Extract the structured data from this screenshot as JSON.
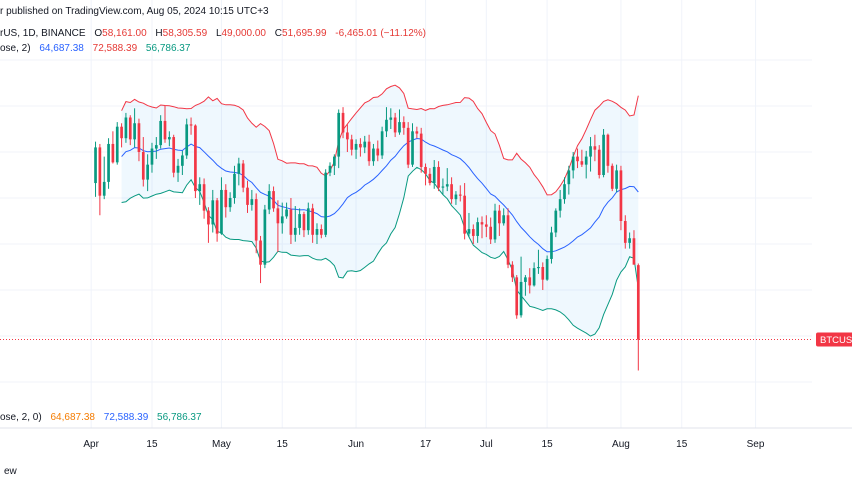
{
  "header": {
    "published": "r published on TradingView.com, Aug 05, 2024 10:15 UTC+3",
    "symbol": "rUS, 1D, BINANCE",
    "open_label": "O",
    "open": "58,161.00",
    "high_label": "H",
    "high": "58,305.59",
    "low_label": "L",
    "low": "49,000.00",
    "close_label": "C",
    "close": "51,695.99",
    "change": "-6,465.01 (−11.12%)",
    "bb_name": "ose, 2)",
    "bb_basis": "64,687.38",
    "bb_upper": "72,588.39",
    "bb_lower": "56,786.37"
  },
  "indicator_row": {
    "name": "ose, 2, 0)",
    "basis": "64,687.38",
    "upper": "72,588.39",
    "lower": "56,786.37"
  },
  "price_label": "BTCUSD",
  "bottom_text": "ew",
  "colors": {
    "up": "#089981",
    "down": "#f23645",
    "basis": "#2962ff",
    "upper": "#f23645",
    "lower": "#089981",
    "band_fill": "#2196f3"
  },
  "chart_data": {
    "type": "candlestick",
    "title": "",
    "x_tick_labels": [
      "Apr",
      "15",
      "May",
      "15",
      "Jun",
      "17",
      "Jul",
      "15",
      "Aug",
      "15",
      "Sep"
    ],
    "x_dates": [
      "2024-04-01",
      "2024-04-15",
      "2024-05-01",
      "2024-05-15",
      "2024-06-01",
      "2024-06-17",
      "2024-07-01",
      "2024-07-15",
      "2024-08-01",
      "2024-08-15",
      "2024-09-01"
    ],
    "x_range": [
      "2024-03-11",
      "2024-09-14"
    ],
    "y_range": [
      46000,
      76000
    ],
    "series": [
      {
        "name": "",
        "ohlc": [
          [
            65300,
            68900,
            64100,
            68400
          ],
          [
            68400,
            68700,
            62500,
            64200
          ],
          [
            64200,
            67600,
            63900,
            65400
          ],
          [
            65400,
            69200,
            64800,
            68700
          ],
          [
            68700,
            69800,
            67000,
            67100
          ],
          [
            67100,
            70600,
            66900,
            70200
          ],
          [
            70200,
            70500,
            68400,
            69200
          ],
          [
            69200,
            71400,
            68800,
            71000
          ],
          [
            71000,
            71200,
            68600,
            69100
          ],
          [
            69100,
            71800,
            68400,
            70500
          ],
          [
            70500,
            70900,
            67200,
            68000
          ],
          [
            68000,
            69300,
            65000,
            65600
          ],
          [
            65600,
            67800,
            64600,
            66900
          ],
          [
            66900,
            68800,
            66200,
            68300
          ],
          [
            68300,
            69300,
            67400,
            68600
          ],
          [
            68600,
            71200,
            68300,
            70700
          ],
          [
            70700,
            72000,
            68800,
            69100
          ],
          [
            69100,
            69800,
            68500,
            69300
          ],
          [
            69300,
            69500,
            65800,
            66200
          ],
          [
            66200,
            67400,
            65400,
            66800
          ],
          [
            66800,
            68100,
            66000,
            67700
          ],
          [
            67700,
            70900,
            67400,
            70400
          ],
          [
            70400,
            71000,
            69500,
            70300
          ],
          [
            70300,
            70400,
            64000,
            64600
          ],
          [
            64600,
            65800,
            63400,
            65200
          ],
          [
            65200,
            65700,
            62200,
            62900
          ],
          [
            62900,
            63200,
            60100,
            61700
          ],
          [
            61700,
            64700,
            61000,
            63800
          ],
          [
            63800,
            64000,
            60200,
            60900
          ],
          [
            60900,
            65800,
            60800,
            64700
          ],
          [
            64700,
            65200,
            62300,
            63200
          ],
          [
            63200,
            64500,
            62800,
            64000
          ],
          [
            64000,
            66800,
            63500,
            66100
          ],
          [
            66100,
            67500,
            65100,
            67000
          ],
          [
            67000,
            67300,
            64500,
            64900
          ],
          [
            64900,
            65500,
            62700,
            63400
          ],
          [
            63400,
            64700,
            62900,
            63900
          ],
          [
            63900,
            64400,
            59200,
            60300
          ],
          [
            60300,
            60700,
            56600,
            58200
          ],
          [
            58200,
            63400,
            57900,
            63000
          ],
          [
            63000,
            65200,
            62600,
            64600
          ],
          [
            64600,
            65000,
            62800,
            63100
          ],
          [
            63100,
            63800,
            59300,
            61800
          ],
          [
            61800,
            63600,
            60900,
            62400
          ],
          [
            62400,
            63600,
            62200,
            63000
          ],
          [
            63000,
            64000,
            60000,
            60800
          ],
          [
            60800,
            63300,
            60200,
            61400
          ],
          [
            61400,
            63100,
            60800,
            62600
          ],
          [
            62600,
            62800,
            60600,
            61200
          ],
          [
            61200,
            63600,
            60800,
            63100
          ],
          [
            63100,
            63500,
            60100,
            60800
          ],
          [
            60800,
            61800,
            60000,
            61300
          ],
          [
            61300,
            61700,
            60500,
            60800
          ],
          [
            60800,
            66500,
            60600,
            66200
          ],
          [
            66200,
            67100,
            65900,
            66800
          ],
          [
            66800,
            67800,
            66000,
            67600
          ],
          [
            67600,
            71700,
            66600,
            71400
          ],
          [
            71400,
            71900,
            69200,
            69700
          ],
          [
            69700,
            70400,
            68000,
            69100
          ],
          [
            69100,
            69500,
            67700,
            68200
          ],
          [
            68200,
            69100,
            67400,
            68700
          ],
          [
            68700,
            69200,
            67600,
            68400
          ],
          [
            68400,
            69400,
            67900,
            68900
          ],
          [
            68900,
            69500,
            66800,
            67200
          ],
          [
            67200,
            68700,
            66800,
            68300
          ],
          [
            68300,
            69000,
            67200,
            67700
          ],
          [
            67700,
            70200,
            67400,
            69800
          ],
          [
            69800,
            71900,
            69300,
            70800
          ],
          [
            70800,
            71800,
            70000,
            71000
          ],
          [
            71000,
            71400,
            69300,
            69700
          ],
          [
            69700,
            71700,
            69500,
            70600
          ],
          [
            70600,
            71100,
            69500,
            70100
          ],
          [
            70100,
            70600,
            66600,
            66900
          ],
          [
            66900,
            70500,
            66700,
            69800
          ],
          [
            69800,
            70200,
            69200,
            69600
          ],
          [
            69600,
            70100,
            66200,
            66700
          ],
          [
            66700,
            67000,
            65100,
            66100
          ],
          [
            66100,
            66600,
            65100,
            65300
          ],
          [
            65300,
            67300,
            64800,
            66700
          ],
          [
            66700,
            67200,
            64600,
            64900
          ],
          [
            64900,
            65700,
            64300,
            65000
          ],
          [
            65000,
            66600,
            64600,
            65200
          ],
          [
            65200,
            65800,
            63500,
            63900
          ],
          [
            63900,
            64600,
            63400,
            64300
          ],
          [
            64300,
            65100,
            63700,
            64200
          ],
          [
            64200,
            65300,
            60400,
            60900
          ],
          [
            60900,
            62700,
            60600,
            61300
          ],
          [
            61300,
            61700,
            60000,
            60700
          ],
          [
            60700,
            62300,
            60100,
            61900
          ],
          [
            61900,
            62400,
            60500,
            61700
          ],
          [
            61700,
            62500,
            60600,
            61500
          ],
          [
            61500,
            62300,
            60000,
            60400
          ],
          [
            60400,
            63500,
            60100,
            62900
          ],
          [
            62900,
            63400,
            60700,
            61800
          ],
          [
            61800,
            63100,
            61600,
            62500
          ],
          [
            62500,
            63100,
            57900,
            58200
          ],
          [
            58200,
            58500,
            56700,
            57100
          ],
          [
            57100,
            57300,
            53500,
            53800
          ],
          [
            53800,
            58900,
            53600,
            56700
          ],
          [
            56700,
            57300,
            55500,
            57100
          ],
          [
            57100,
            57900,
            55700,
            56400
          ],
          [
            56400,
            58400,
            56300,
            57900
          ],
          [
            57900,
            59500,
            57400,
            58000
          ],
          [
            58000,
            58400,
            56000,
            56900
          ],
          [
            56900,
            59000,
            56800,
            58700
          ],
          [
            58700,
            61500,
            58300,
            61000
          ],
          [
            61000,
            63100,
            60600,
            62900
          ],
          [
            62900,
            64700,
            62300,
            63900
          ],
          [
            63900,
            65800,
            63500,
            65200
          ],
          [
            65200,
            66800,
            64300,
            66400
          ],
          [
            66400,
            68000,
            65700,
            67600
          ],
          [
            67600,
            68300,
            66600,
            67200
          ],
          [
            67200,
            68200,
            66700,
            66900
          ],
          [
            66900,
            68100,
            65700,
            67600
          ],
          [
            67600,
            69300,
            66300,
            68500
          ],
          [
            68500,
            69500,
            67200,
            68200
          ],
          [
            68200,
            68600,
            65700,
            66000
          ],
          [
            66000,
            70000,
            65800,
            69500
          ],
          [
            69500,
            69600,
            66200,
            66800
          ],
          [
            66800,
            67000,
            64600,
            64800
          ],
          [
            64800,
            66900,
            64500,
            66400
          ],
          [
            66400,
            66800,
            61200,
            62000
          ],
          [
            62000,
            62500,
            59600,
            60100
          ],
          [
            60100,
            61000,
            59600,
            60500
          ],
          [
            60500,
            61200,
            58300,
            58200
          ],
          [
            58161,
            58306,
            49000,
            51696
          ]
        ]
      },
      {
        "name": "",
        "values": []
      }
    ]
  }
}
